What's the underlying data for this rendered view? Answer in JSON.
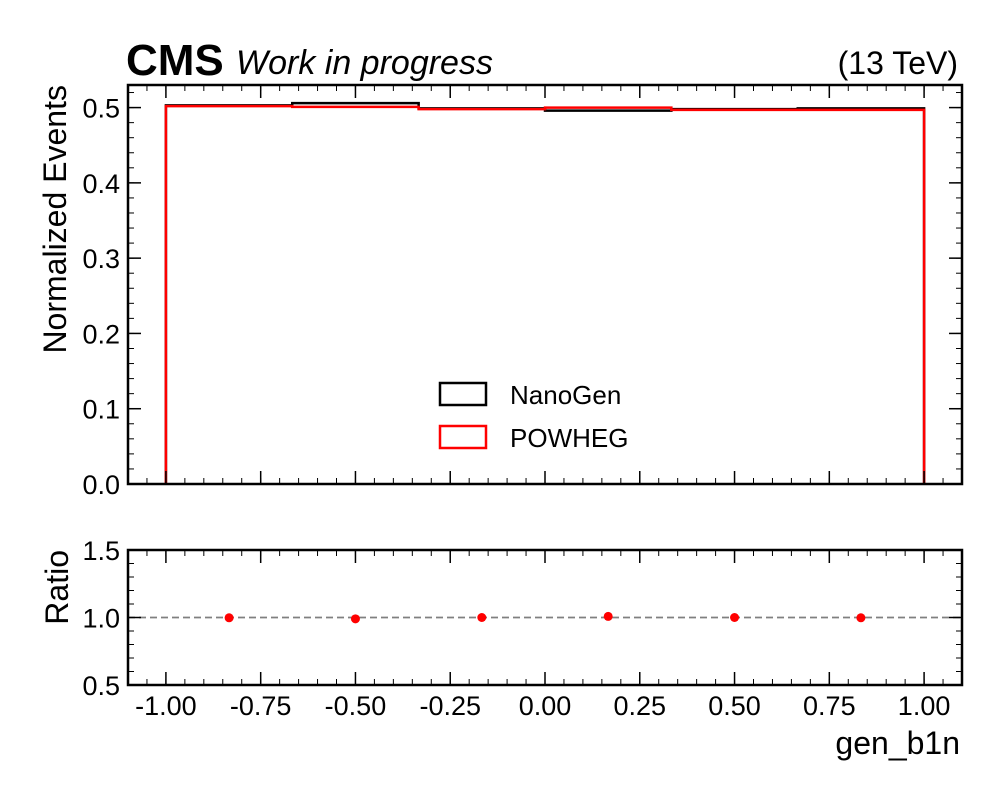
{
  "header": {
    "experiment": "CMS",
    "status": "Work in progress",
    "energy": "(13 TeV)"
  },
  "chart_data": [
    {
      "type": "step",
      "panel": "main",
      "xlabel": "",
      "ylabel": "Normalized Events",
      "xlim": [
        -1.1,
        1.1
      ],
      "ylim": [
        0.0,
        0.53
      ],
      "yticks": [
        "0.0",
        "0.1",
        "0.2",
        "0.3",
        "0.4",
        "0.5"
      ],
      "bin_edges": [
        -1.0,
        -0.6667,
        -0.3333,
        0.0,
        0.3333,
        0.6667,
        1.0
      ],
      "series": [
        {
          "name": "NanoGen",
          "color": "#000000",
          "values": [
            0.503,
            0.506,
            0.499,
            0.496,
            0.498,
            0.499
          ]
        },
        {
          "name": "POWHEG",
          "color": "#ff0000",
          "values": [
            0.502,
            0.501,
            0.498,
            0.5,
            0.497,
            0.497
          ]
        }
      ],
      "legend_position": "lower-center"
    },
    {
      "type": "scatter",
      "panel": "ratio",
      "xlabel": "gen_b1n",
      "ylabel": "Ratio",
      "xlim": [
        -1.1,
        1.1
      ],
      "ylim": [
        0.5,
        1.5
      ],
      "reference_line": 1.0,
      "xticks": [
        "-1.00",
        "-0.75",
        "-0.50",
        "-0.25",
        "0.00",
        "0.25",
        "0.50",
        "0.75",
        "1.00"
      ],
      "yticks": [
        "0.5",
        "1.0",
        "1.5"
      ],
      "x": [
        -0.8333,
        -0.5,
        -0.1667,
        0.1667,
        0.5,
        0.8333
      ],
      "y": [
        0.998,
        0.99,
        1.0,
        1.008,
        1.0,
        0.998
      ],
      "color": "#ff0000"
    }
  ]
}
